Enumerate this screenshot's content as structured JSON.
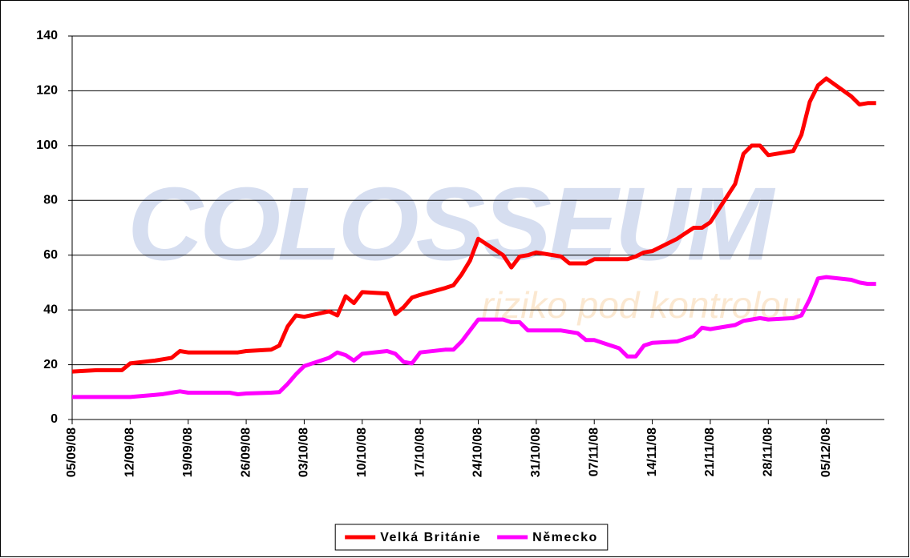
{
  "chart_data": {
    "type": "line",
    "annotations": [
      "COLOSSEUM",
      "riziko pod kontrolou"
    ],
    "x": [
      "05/09/08",
      "08/09/08",
      "09/09/08",
      "10/09/08",
      "11/09/08",
      "12/09/08",
      "15/09/08",
      "16/09/08",
      "17/09/08",
      "18/09/08",
      "19/09/08",
      "22/09/08",
      "23/09/08",
      "24/09/08",
      "25/09/08",
      "26/09/08",
      "29/09/08",
      "30/09/08",
      "01/10/08",
      "02/10/08",
      "03/10/08",
      "06/10/08",
      "07/10/08",
      "08/10/08",
      "09/10/08",
      "10/10/08",
      "13/10/08",
      "14/10/08",
      "15/10/08",
      "16/10/08",
      "17/10/08",
      "20/10/08",
      "21/10/08",
      "22/10/08",
      "23/10/08",
      "24/10/08",
      "27/10/08",
      "28/10/08",
      "29/10/08",
      "30/10/08",
      "31/10/08",
      "03/11/08",
      "04/11/08",
      "05/11/08",
      "06/11/08",
      "07/11/08",
      "10/11/08",
      "11/11/08",
      "12/11/08",
      "13/11/08",
      "14/11/08",
      "17/11/08",
      "18/11/08",
      "19/11/08",
      "20/11/08",
      "21/11/08",
      "24/11/08",
      "25/11/08",
      "26/11/08",
      "27/11/08",
      "28/11/08",
      "01/12/08",
      "02/12/08",
      "03/12/08",
      "04/12/08",
      "05/12/08",
      "08/12/08",
      "09/12/08",
      "10/12/08",
      "11/12/08"
    ],
    "series": [
      {
        "name": "Velká Británie",
        "color": "#ff0000",
        "values": [
          17.5,
          18,
          18,
          18,
          18,
          20.5,
          21.5,
          22,
          22.5,
          25,
          24.5,
          24.5,
          24.5,
          24.5,
          24.5,
          25,
          25.5,
          27,
          34,
          38,
          37.5,
          39.5,
          38,
          45,
          42.5,
          46.5,
          46,
          38.5,
          41,
          44.5,
          45.5,
          48,
          49,
          53,
          58,
          66,
          60,
          55.5,
          59.5,
          60,
          61,
          59.5,
          57,
          57,
          57,
          58.5,
          58.5,
          58.5,
          59.5,
          61,
          61.5,
          66,
          68,
          70,
          70,
          72,
          86,
          97,
          100,
          100,
          96.5,
          98,
          104,
          116,
          122,
          124.5,
          118,
          115,
          115.5,
          115.5
        ]
      },
      {
        "name": "Německo",
        "color": "#ff00ff",
        "values": [
          8.2,
          8.2,
          8.2,
          8.2,
          8.2,
          8.2,
          9,
          9.3,
          9.8,
          10.3,
          9.8,
          9.8,
          9.8,
          9.8,
          9.2,
          9.5,
          9.8,
          10,
          13,
          16.5,
          19.5,
          22.5,
          24.5,
          23.5,
          21.5,
          24,
          25,
          24,
          21,
          20.5,
          24.5,
          25.5,
          25.5,
          28.5,
          32.5,
          36.5,
          36.5,
          35.5,
          35.5,
          32.5,
          32.5,
          32.5,
          32,
          31.5,
          29,
          29,
          26,
          23,
          23,
          27,
          28,
          28.5,
          29.5,
          30.5,
          33.5,
          33,
          34.5,
          36,
          36.5,
          37,
          36.5,
          37,
          38,
          44,
          51.5,
          52,
          51,
          50,
          49.5,
          49.5
        ]
      }
    ],
    "xlim": [
      "05/09/08",
      "12/12/08"
    ],
    "xticks": [
      "05/09/08",
      "12/09/08",
      "19/09/08",
      "26/09/08",
      "03/10/08",
      "10/10/08",
      "17/10/08",
      "24/10/08",
      "31/10/08",
      "07/11/08",
      "14/11/08",
      "21/11/08",
      "28/11/08",
      "05/12/08"
    ],
    "ylim": [
      0,
      140
    ],
    "yticks": [
      0,
      20,
      40,
      60,
      80,
      100,
      120,
      140
    ],
    "grid": true,
    "legend": "bottom"
  }
}
